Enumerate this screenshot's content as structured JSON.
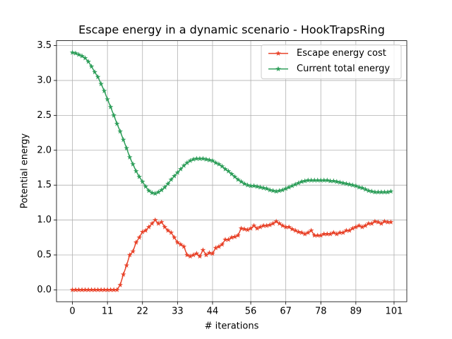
{
  "chart_data": {
    "type": "line",
    "title": "Escape energy in a dynamic scenario - HookTrapsRing",
    "xlabel": "# iterations",
    "ylabel": "Potential energy",
    "x": [
      0,
      1,
      2,
      3,
      4,
      5,
      6,
      7,
      8,
      9,
      10,
      11,
      12,
      13,
      14,
      15,
      16,
      17,
      18,
      19,
      20,
      21,
      22,
      23,
      24,
      25,
      26,
      27,
      28,
      29,
      30,
      31,
      32,
      33,
      34,
      35,
      36,
      37,
      38,
      39,
      40,
      41,
      42,
      43,
      44,
      45,
      46,
      47,
      48,
      49,
      50,
      51,
      52,
      53,
      54,
      55,
      56,
      57,
      58,
      59,
      60,
      61,
      62,
      63,
      64,
      65,
      66,
      67,
      68,
      69,
      70,
      71,
      72,
      73,
      74,
      75,
      76,
      77,
      78,
      79,
      80,
      81,
      82,
      83,
      84,
      85,
      86,
      87,
      88,
      89,
      90,
      91,
      92,
      93,
      94,
      95,
      96,
      97,
      98,
      99,
      100
    ],
    "series": [
      {
        "name": "Escape energy cost",
        "color": "#e8432a",
        "values": [
          0,
          0,
          0,
          0,
          0,
          0,
          0,
          0,
          0,
          0,
          0,
          0,
          0,
          0,
          0,
          0.07,
          0.22,
          0.35,
          0.5,
          0.55,
          0.68,
          0.75,
          0.83,
          0.85,
          0.9,
          0.95,
          1.0,
          0.95,
          0.97,
          0.9,
          0.85,
          0.82,
          0.75,
          0.68,
          0.65,
          0.62,
          0.5,
          0.48,
          0.5,
          0.52,
          0.48,
          0.57,
          0.5,
          0.53,
          0.52,
          0.6,
          0.62,
          0.65,
          0.72,
          0.72,
          0.75,
          0.76,
          0.78,
          0.88,
          0.87,
          0.86,
          0.88,
          0.92,
          0.88,
          0.9,
          0.92,
          0.92,
          0.93,
          0.95,
          0.98,
          0.95,
          0.92,
          0.9,
          0.9,
          0.87,
          0.85,
          0.83,
          0.82,
          0.8,
          0.82,
          0.85,
          0.78,
          0.78,
          0.78,
          0.8,
          0.8,
          0.8,
          0.82,
          0.8,
          0.82,
          0.82,
          0.85,
          0.85,
          0.88,
          0.9,
          0.92,
          0.9,
          0.92,
          0.95,
          0.95,
          0.98,
          0.97,
          0.95,
          0.98,
          0.97,
          0.97
        ]
      },
      {
        "name": "Current total energy",
        "color": "#2e9e5a",
        "values": [
          3.4,
          3.39,
          3.37,
          3.35,
          3.32,
          3.27,
          3.2,
          3.12,
          3.05,
          2.95,
          2.85,
          2.73,
          2.62,
          2.5,
          2.38,
          2.27,
          2.15,
          2.03,
          1.9,
          1.8,
          1.7,
          1.62,
          1.55,
          1.48,
          1.42,
          1.39,
          1.38,
          1.4,
          1.43,
          1.47,
          1.52,
          1.58,
          1.63,
          1.68,
          1.73,
          1.78,
          1.82,
          1.85,
          1.87,
          1.88,
          1.88,
          1.88,
          1.87,
          1.86,
          1.85,
          1.82,
          1.8,
          1.77,
          1.73,
          1.7,
          1.66,
          1.62,
          1.58,
          1.55,
          1.52,
          1.5,
          1.49,
          1.49,
          1.48,
          1.47,
          1.46,
          1.45,
          1.43,
          1.42,
          1.41,
          1.42,
          1.43,
          1.45,
          1.47,
          1.49,
          1.51,
          1.53,
          1.55,
          1.56,
          1.57,
          1.57,
          1.57,
          1.57,
          1.57,
          1.57,
          1.57,
          1.56,
          1.56,
          1.55,
          1.54,
          1.53,
          1.52,
          1.51,
          1.5,
          1.49,
          1.47,
          1.46,
          1.44,
          1.42,
          1.41,
          1.4,
          1.4,
          1.4,
          1.4,
          1.4,
          1.41
        ]
      }
    ],
    "xlim": [
      -5,
      105
    ],
    "ylim": [
      -0.17,
      3.57
    ],
    "xticks": [
      0,
      11,
      22,
      33,
      44,
      56,
      67,
      78,
      89,
      101
    ],
    "yticks": [
      {
        "value": 0,
        "label": "0.0"
      },
      {
        "value": 0.5,
        "label": "0.5"
      },
      {
        "value": 1,
        "label": "1.0"
      },
      {
        "value": 1.5,
        "label": "1.5"
      },
      {
        "value": 2,
        "label": "2.0"
      },
      {
        "value": 2.5,
        "label": "2.5"
      },
      {
        "value": 3,
        "label": "3.0"
      },
      {
        "value": 3.5,
        "label": "3.5"
      }
    ],
    "grid": true,
    "legend": "upper right",
    "marker": "star"
  }
}
